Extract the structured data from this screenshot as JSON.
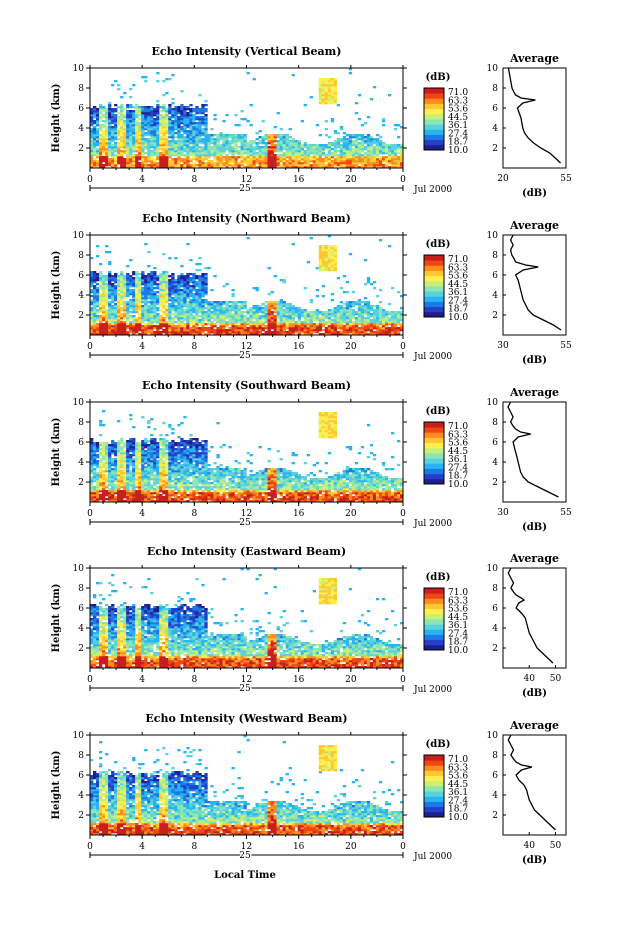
{
  "figure": {
    "xlabel": "Local Time",
    "date_label": "Jul 2000",
    "day_label": "25",
    "colorbar_unit": "(dB)",
    "avg_title": "Average",
    "avg_xlabel": "(dB)"
  },
  "colorbar": {
    "ticks": [
      "71.0",
      "63.3",
      "53.6",
      "44.5",
      "36.1",
      "27.4",
      "18.7",
      "10.0"
    ],
    "colors": [
      "#1e1e8c",
      "#2440c8",
      "#1e78e6",
      "#28b4f0",
      "#5ad2dc",
      "#8ce6b4",
      "#c8f078",
      "#fff050",
      "#ffc832",
      "#ff8c1e",
      "#f04614",
      "#c81e1e"
    ]
  },
  "chart_data": [
    {
      "type": "heatmap",
      "title": "Echo Intensity (Vertical Beam)",
      "xlabel": "Local Time",
      "ylabel": "Height (km)",
      "x_ticks": [
        "0",
        "4",
        "8",
        "12",
        "16",
        "20",
        "0"
      ],
      "y_ticks": [
        "2",
        "4",
        "6",
        "8",
        "10"
      ],
      "xlim": [
        0,
        24
      ],
      "ylim": [
        0,
        10
      ],
      "zlim": [
        10.0,
        71.0
      ],
      "avg": {
        "title": "Average",
        "xlabel": "(dB)",
        "x_ticks": [
          "20",
          "55"
        ],
        "xlim": [
          20,
          55
        ],
        "height": [
          0.5,
          1,
          1.5,
          2,
          2.5,
          3,
          3.5,
          4,
          4.5,
          5,
          5.5,
          6,
          6.5,
          6.8,
          7,
          7.3,
          7.6,
          8,
          8.5,
          9,
          9.5,
          10
        ],
        "value": [
          52,
          49,
          46,
          41,
          37,
          34,
          32,
          31,
          30.5,
          30,
          29,
          28,
          31,
          38,
          30,
          27,
          26,
          25,
          24.5,
          24,
          23.5,
          23
        ]
      }
    },
    {
      "type": "heatmap",
      "title": "Echo Intensity (Northward Beam)",
      "xlabel": "Local Time",
      "ylabel": "Height (km)",
      "x_ticks": [
        "0",
        "4",
        "8",
        "12",
        "16",
        "20",
        "0"
      ],
      "y_ticks": [
        "2",
        "4",
        "6",
        "8",
        "10"
      ],
      "xlim": [
        0,
        24
      ],
      "ylim": [
        0,
        10
      ],
      "zlim": [
        10.0,
        71.0
      ],
      "avg": {
        "title": "Average",
        "xlabel": "(dB)",
        "x_ticks": [
          "30",
          "55"
        ],
        "xlim": [
          30,
          55
        ],
        "height": [
          0.5,
          1,
          1.5,
          2,
          2.5,
          3,
          3.5,
          4,
          4.5,
          5,
          5.5,
          6,
          6.5,
          6.8,
          7,
          7.3,
          7.6,
          8,
          8.5,
          9,
          9.5,
          10
        ],
        "value": [
          53,
          50,
          46,
          42,
          40,
          39,
          38,
          37.5,
          37,
          36.5,
          36,
          35,
          38,
          44,
          39,
          35,
          34.5,
          33.5,
          33,
          34,
          33,
          34
        ]
      }
    },
    {
      "type": "heatmap",
      "title": "Echo Intensity (Southward Beam)",
      "xlabel": "Local Time",
      "ylabel": "Height (km)",
      "x_ticks": [
        "0",
        "4",
        "8",
        "12",
        "16",
        "20",
        "0"
      ],
      "y_ticks": [
        "2",
        "4",
        "6",
        "8",
        "10"
      ],
      "xlim": [
        0,
        24
      ],
      "ylim": [
        0,
        10
      ],
      "zlim": [
        10.0,
        71.0
      ],
      "avg": {
        "title": "Average",
        "xlabel": "(dB)",
        "x_ticks": [
          "30",
          "55"
        ],
        "xlim": [
          30,
          55
        ],
        "height": [
          0.5,
          1,
          1.5,
          2,
          2.5,
          3,
          3.5,
          4,
          4.5,
          5,
          5.5,
          6,
          6.5,
          6.8,
          7,
          7.3,
          7.6,
          8,
          8.5,
          9,
          9.5,
          10
        ],
        "value": [
          52,
          48,
          44,
          40,
          38,
          37,
          36.5,
          36,
          35.5,
          35,
          34.5,
          34,
          36,
          41,
          37,
          35,
          34,
          33,
          34,
          33,
          32,
          33
        ]
      }
    },
    {
      "type": "heatmap",
      "title": "Echo Intensity (Eastward Beam)",
      "xlabel": "Local Time",
      "ylabel": "Height (km)",
      "x_ticks": [
        "0",
        "4",
        "8",
        "12",
        "16",
        "20",
        "0"
      ],
      "y_ticks": [
        "2",
        "4",
        "6",
        "8",
        "10"
      ],
      "xlim": [
        0,
        24
      ],
      "ylim": [
        0,
        10
      ],
      "zlim": [
        10.0,
        71.0
      ],
      "avg": {
        "title": "Average",
        "xlabel": "(dB)",
        "x_ticks": [
          "40",
          "50"
        ],
        "xlim": [
          30,
          54
        ],
        "height": [
          0.5,
          1,
          1.5,
          2,
          2.5,
          3,
          3.5,
          4,
          4.5,
          5,
          5.5,
          6,
          6.5,
          6.8,
          7,
          7.3,
          7.6,
          8,
          8.5,
          9,
          9.5,
          10
        ],
        "value": [
          49,
          47,
          45,
          43,
          42,
          41,
          40,
          39.5,
          39,
          38.5,
          37,
          35,
          36,
          38,
          37,
          35,
          34,
          33,
          34,
          33,
          32,
          33
        ]
      }
    },
    {
      "type": "heatmap",
      "title": "Echo Intensity (Westward Beam)",
      "xlabel": "Local Time",
      "ylabel": "Height (km)",
      "x_ticks": [
        "0",
        "4",
        "8",
        "12",
        "16",
        "20",
        "0"
      ],
      "y_ticks": [
        "2",
        "4",
        "6",
        "8",
        "10"
      ],
      "xlim": [
        0,
        24
      ],
      "ylim": [
        0,
        10
      ],
      "zlim": [
        10.0,
        71.0
      ],
      "avg": {
        "title": "Average",
        "xlabel": "(dB)",
        "x_ticks": [
          "40",
          "50"
        ],
        "xlim": [
          30,
          54
        ],
        "height": [
          0.5,
          1,
          1.5,
          2,
          2.5,
          3,
          3.5,
          4,
          4.5,
          5,
          5.5,
          6,
          6.5,
          6.8,
          7,
          7.3,
          7.6,
          8,
          8.5,
          9,
          9.5,
          10
        ],
        "value": [
          50,
          48,
          46,
          44,
          42,
          41,
          40,
          39.5,
          39,
          38,
          36,
          35,
          37,
          41,
          37,
          35,
          34,
          33,
          34,
          33,
          32,
          33
        ]
      }
    }
  ]
}
